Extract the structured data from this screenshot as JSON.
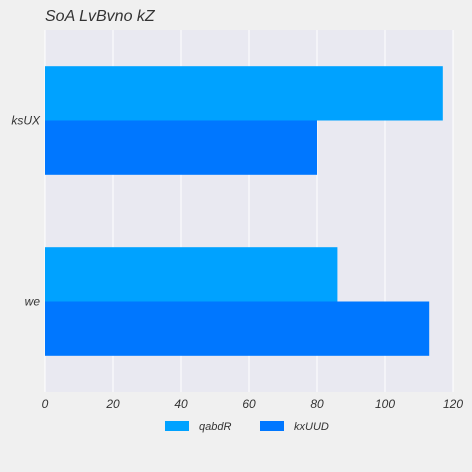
{
  "chart_data": {
    "type": "bar",
    "orientation": "horizontal",
    "title": "SoA LvBvno kZ",
    "xlabel": "",
    "ylabel": "",
    "categories": [
      "ksUX",
      "we"
    ],
    "series": [
      {
        "name": "qabdR",
        "values": [
          117,
          86
        ],
        "color": "#00a2ff"
      },
      {
        "name": "kxUUD",
        "values": [
          80,
          113
        ],
        "color": "#0077ff"
      }
    ],
    "xlim": [
      0,
      120
    ],
    "xticks": [
      0,
      20,
      40,
      60,
      80,
      100,
      120
    ],
    "grid": true,
    "legend_position": "bottom-center",
    "colors": {
      "plot_background": "#e9e9f1",
      "page_background": "#f0f0f0",
      "grid": "#ffffff"
    }
  }
}
